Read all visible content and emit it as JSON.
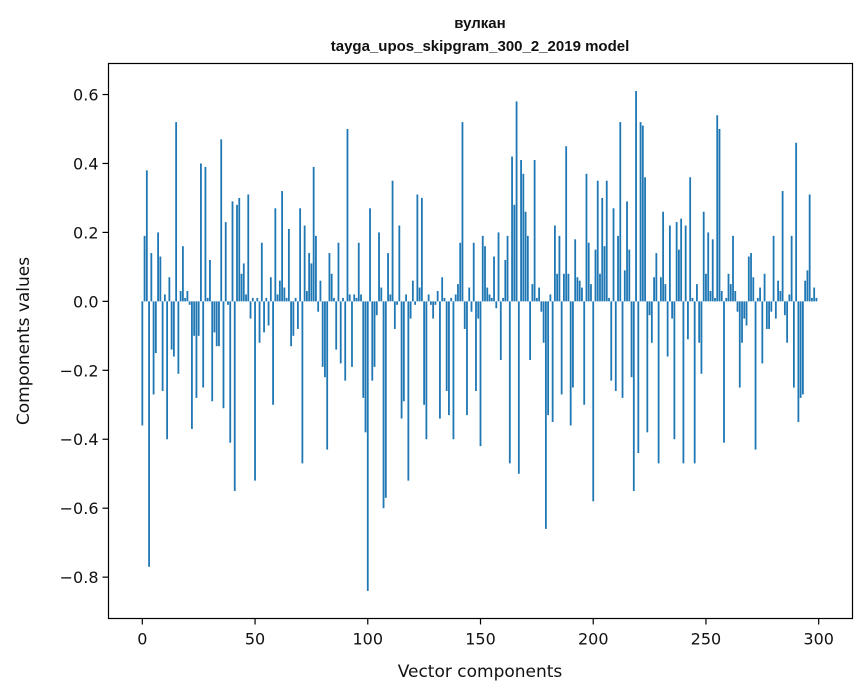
{
  "chart_data": {
    "type": "bar",
    "title": "вулкан",
    "subtitle": "tayga_upos_skipgram_300_2_2019 model",
    "xlabel": "Vector components",
    "ylabel": "Components values",
    "xlim": [
      -15,
      315
    ],
    "ylim": [
      -0.92,
      0.69
    ],
    "xticks": [
      0,
      50,
      100,
      150,
      200,
      250,
      300
    ],
    "xtick_labels": [
      "0",
      "50",
      "100",
      "150",
      "200",
      "250",
      "300"
    ],
    "yticks": [
      0.6,
      0.4,
      0.2,
      0.0,
      -0.2,
      -0.4,
      -0.6,
      -0.8
    ],
    "ytick_labels": [
      "0.6",
      "0.4",
      "0.2",
      "0.0",
      "−0.2",
      "−0.4",
      "−0.6",
      "−0.8"
    ],
    "grid": false,
    "legend": "none",
    "bar_color": "#1f77b4",
    "series": [
      {
        "values": [
          -0.36,
          0.19,
          0.38,
          -0.77,
          0.14,
          -0.27,
          -0.15,
          0.2,
          0.13,
          -0.26,
          0.02,
          -0.4,
          0.07,
          -0.14,
          -0.16,
          0.52,
          -0.21,
          0.03,
          0.16,
          0.01,
          0.03,
          -0.01,
          -0.37,
          -0.1,
          -0.28,
          -0.1,
          0.4,
          -0.25,
          0.39,
          0.01,
          0.12,
          -0.29,
          -0.09,
          -0.13,
          -0.13,
          0.47,
          -0.31,
          0.23,
          -0.01,
          -0.41,
          0.29,
          -0.55,
          0.28,
          0.3,
          0.08,
          0.11,
          0.02,
          0.31,
          -0.05,
          0.01,
          -0.52,
          0.01,
          -0.12,
          0.17,
          -0.09,
          0.01,
          -0.07,
          0.07,
          -0.3,
          0.27,
          0.02,
          0.06,
          0.32,
          0.04,
          0.01,
          0.21,
          -0.13,
          -0.1,
          0.01,
          -0.08,
          0.27,
          -0.47,
          0.22,
          0.03,
          0.14,
          0.11,
          0.39,
          0.19,
          -0.03,
          0.06,
          -0.19,
          -0.22,
          -0.43,
          0.14,
          0.08,
          0.01,
          -0.14,
          0.17,
          -0.18,
          0.01,
          -0.23,
          0.5,
          0.02,
          -0.19,
          0.02,
          0.01,
          0.17,
          0.02,
          -0.28,
          -0.38,
          -0.84,
          0.27,
          -0.23,
          -0.19,
          -0.04,
          0.2,
          0.04,
          -0.6,
          -0.57,
          0.14,
          0.02,
          0.35,
          -0.08,
          -0.01,
          0.22,
          -0.34,
          -0.29,
          0.02,
          -0.52,
          -0.05,
          0.06,
          -0.01,
          0.31,
          0.04,
          0.3,
          -0.3,
          -0.4,
          0.02,
          -0.01,
          -0.05,
          -0.01,
          0.03,
          -0.34,
          0.07,
          0.01,
          -0.26,
          -0.33,
          0.01,
          -0.4,
          0.02,
          0.05,
          0.17,
          0.52,
          -0.08,
          -0.33,
          0.04,
          -0.03,
          0.17,
          -0.26,
          -0.05,
          -0.42,
          0.19,
          0.16,
          0.04,
          0.02,
          0.01,
          0.13,
          -0.02,
          0.2,
          -0.17,
          0.01,
          0.12,
          0.19,
          -0.47,
          0.42,
          0.28,
          0.58,
          -0.5,
          0.41,
          0.37,
          0.26,
          0.19,
          -0.17,
          0.05,
          0.41,
          0.01,
          0.04,
          -0.03,
          -0.12,
          -0.66,
          -0.33,
          0.02,
          -0.35,
          0.22,
          0.08,
          0.19,
          -0.27,
          0.08,
          0.45,
          0.08,
          -0.36,
          -0.25,
          0.18,
          0.07,
          0.06,
          0.04,
          -0.3,
          0.37,
          0.17,
          0.05,
          -0.58,
          0.15,
          0.35,
          0.08,
          0.3,
          0.16,
          0.35,
          0.01,
          -0.23,
          0.27,
          -0.26,
          0.19,
          0.52,
          -0.28,
          0.09,
          0.29,
          0.15,
          -0.22,
          -0.55,
          0.61,
          -0.44,
          0.52,
          0.51,
          0.36,
          -0.38,
          -0.04,
          -0.12,
          0.07,
          0.14,
          -0.47,
          0.07,
          0.26,
          0.05,
          -0.16,
          0.22,
          -0.05,
          -0.4,
          0.23,
          0.15,
          0.24,
          -0.47,
          0.22,
          -0.11,
          0.36,
          0.01,
          -0.47,
          0.05,
          -0.12,
          -0.21,
          0.26,
          0.08,
          0.2,
          0.03,
          0.18,
          0.01,
          0.54,
          0.5,
          0.03,
          -0.41,
          0.01,
          0.08,
          0.05,
          0.19,
          0.03,
          -0.03,
          -0.25,
          -0.12,
          -0.05,
          -0.07,
          0.13,
          0.14,
          0.07,
          -0.43,
          0.01,
          0.04,
          -0.18,
          0.08,
          -0.08,
          -0.08,
          -0.03,
          0.19,
          -0.05,
          0.06,
          0.03,
          0.32,
          -0.04,
          -0.12,
          0.02,
          0.19,
          -0.25,
          0.46,
          -0.35,
          -0.28,
          -0.27,
          0.06,
          0.09,
          0.31,
          0.01,
          0.04,
          0.01
        ]
      }
    ]
  }
}
